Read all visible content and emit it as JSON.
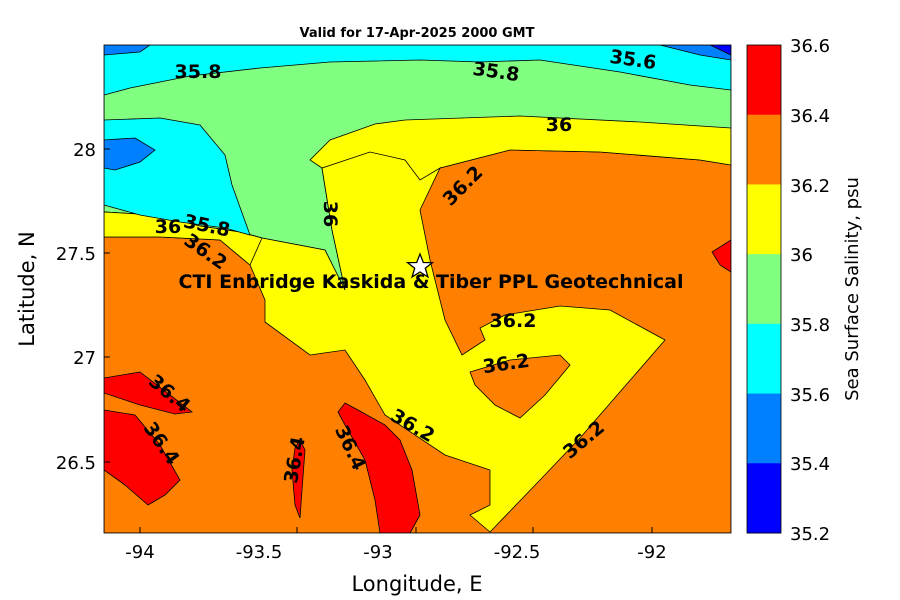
{
  "title": "Valid for 17-Apr-2025 2000 GMT",
  "xlabel": "Longitude, E",
  "ylabel": "Latitude, N",
  "colorbar_label": "Sea Surface Salinity, psu",
  "site_label": "CTI Enbridge  Kaskida & Tiber PPL Geotechnical",
  "site_marker_icon": "star-icon",
  "site_location": {
    "lon": -92.88,
    "lat": 27.43
  },
  "x_ticks": [
    "-94",
    "-93.5",
    "-93",
    "-92.5",
    "-92"
  ],
  "y_ticks": [
    "28",
    "27.5",
    "27",
    "26.5"
  ],
  "colorbar": {
    "levels": [
      "36.6",
      "36.4",
      "36.2",
      "36",
      "35.8",
      "35.6",
      "35.4",
      "35.2"
    ],
    "colors": [
      "#ff0000",
      "#ff8000",
      "#ffff00",
      "#80ff80",
      "#00ffff",
      "#0080ff",
      "#0000ff"
    ]
  },
  "contour_labels": [
    "35.8",
    "35.8",
    "35.6",
    "36",
    "36",
    "35.8",
    "36.2",
    "36",
    "36.2",
    "36.2",
    "36.2",
    "36.4",
    "36.4",
    "36.4",
    "36.4",
    "36.2",
    "36.2"
  ],
  "chart_data": {
    "type": "heatmap",
    "title": "Valid for 17-Apr-2025 2000 GMT",
    "xlabel": "Longitude, E",
    "ylabel": "Latitude, N",
    "xlim": [
      -94.1,
      -91.7
    ],
    "ylim": [
      26.15,
      28.5
    ],
    "zlabel": "Sea Surface Salinity, psu",
    "zlim": [
      35.2,
      36.6
    ],
    "contour_levels": [
      35.2,
      35.4,
      35.6,
      35.8,
      36.0,
      36.2,
      36.4,
      36.6
    ]
  }
}
